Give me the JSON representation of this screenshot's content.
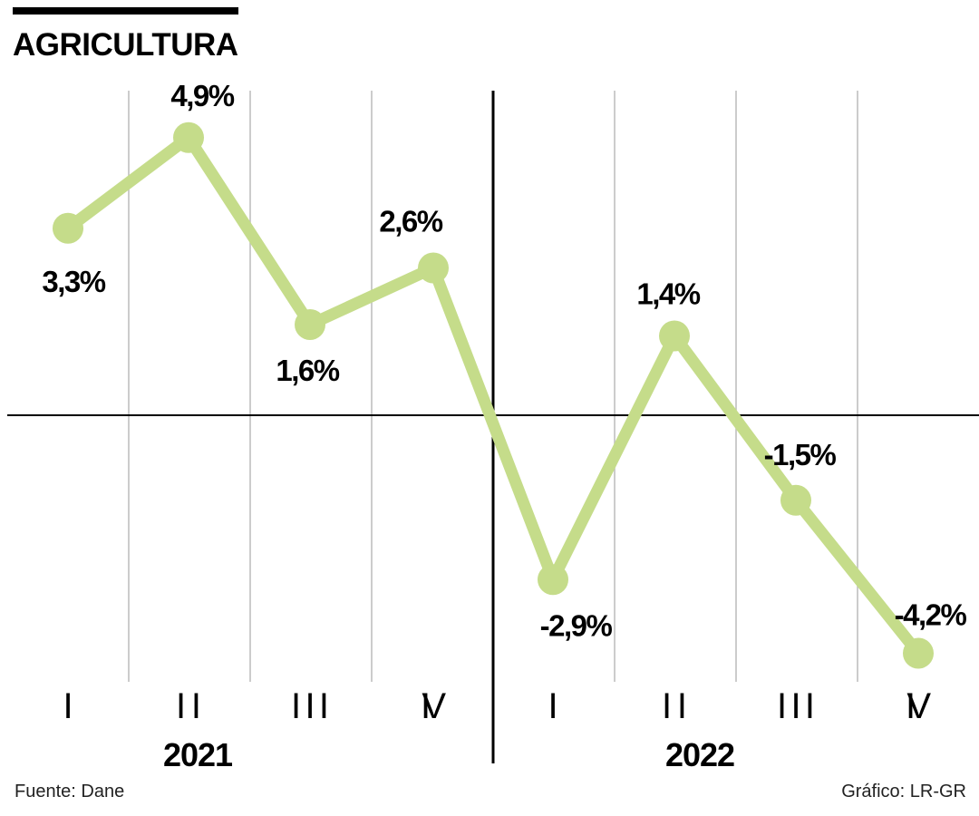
{
  "header": {
    "title": "AGRICULTURA"
  },
  "footer": {
    "source": "Fuente: Dane",
    "credit": "Gráfico: LR-GR"
  },
  "colors": {
    "line": "#c5dc8a",
    "axis": "#000000",
    "grid": "#bbbbbb"
  },
  "chart_data": {
    "type": "line",
    "title": "AGRICULTURA",
    "xlabel": "",
    "ylabel": "",
    "categories": [
      "I",
      "II",
      "III",
      "IV",
      "I",
      "II",
      "III",
      "IV"
    ],
    "year_groups": [
      {
        "label": "2021",
        "quarters": [
          "I",
          "II",
          "III",
          "IV"
        ]
      },
      {
        "label": "2022",
        "quarters": [
          "I",
          "II",
          "III",
          "IV"
        ]
      }
    ],
    "series": [
      {
        "name": "Agricultura",
        "values": [
          3.3,
          4.9,
          1.6,
          2.6,
          -2.9,
          1.4,
          -1.5,
          -4.2
        ],
        "labels": [
          "3,3%",
          "4,9%",
          "1,6%",
          "2,6%",
          "-2,9%",
          "1,4%",
          "-1,5%",
          "-4,2%"
        ]
      }
    ],
    "ylim": [
      -4.9,
      5.7
    ],
    "zero_line": true,
    "grid": "vertical",
    "legend": "none"
  }
}
